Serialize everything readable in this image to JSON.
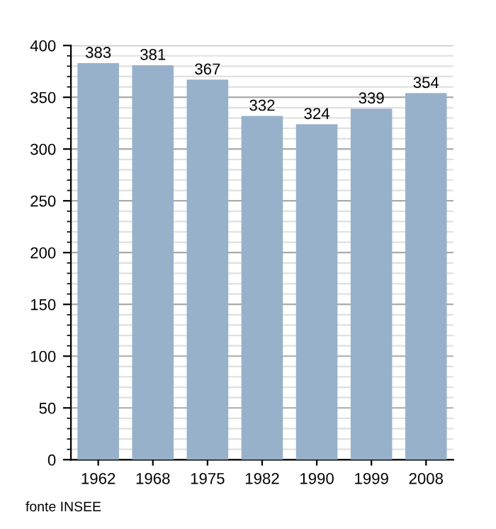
{
  "chart_data": {
    "type": "bar",
    "categories": [
      "1962",
      "1968",
      "1975",
      "1982",
      "1990",
      "1999",
      "2008"
    ],
    "values": [
      383,
      381,
      367,
      332,
      324,
      339,
      354
    ],
    "color": "#97b1cb",
    "ylim": [
      0,
      400
    ],
    "yticks": [
      0,
      50,
      100,
      150,
      200,
      250,
      300,
      350,
      400
    ],
    "grid": "y",
    "data_labels": true,
    "annotations": [
      "fonte INSEE"
    ]
  }
}
